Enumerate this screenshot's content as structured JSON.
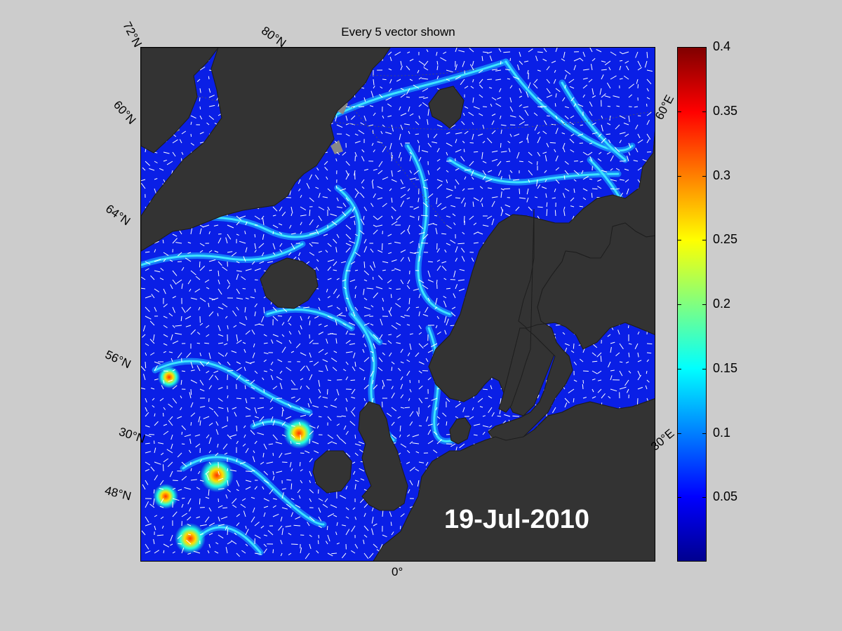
{
  "title": "Every 5 vector shown",
  "date": "19-Jul-2010",
  "latitude_labels": [
    "72°N",
    "60°N",
    "64°N",
    "56°N",
    "30°N",
    "48°N"
  ],
  "parallel_labels": [
    "80°N"
  ],
  "longitude_labels": [
    "60°E",
    "30°E",
    "0°"
  ],
  "colorbar": {
    "ticks": [
      "0.4",
      "0.35",
      "0.3",
      "0.25",
      "0.2",
      "0.15",
      "0.1",
      "0.05"
    ],
    "min": 0,
    "max": 0.4,
    "colormap": "jet"
  },
  "colors": {
    "ocean_low": "#0a1fe6",
    "land": "#333333",
    "ice": "#888888",
    "background": "#cccccc",
    "vector": "#ffffff"
  }
}
